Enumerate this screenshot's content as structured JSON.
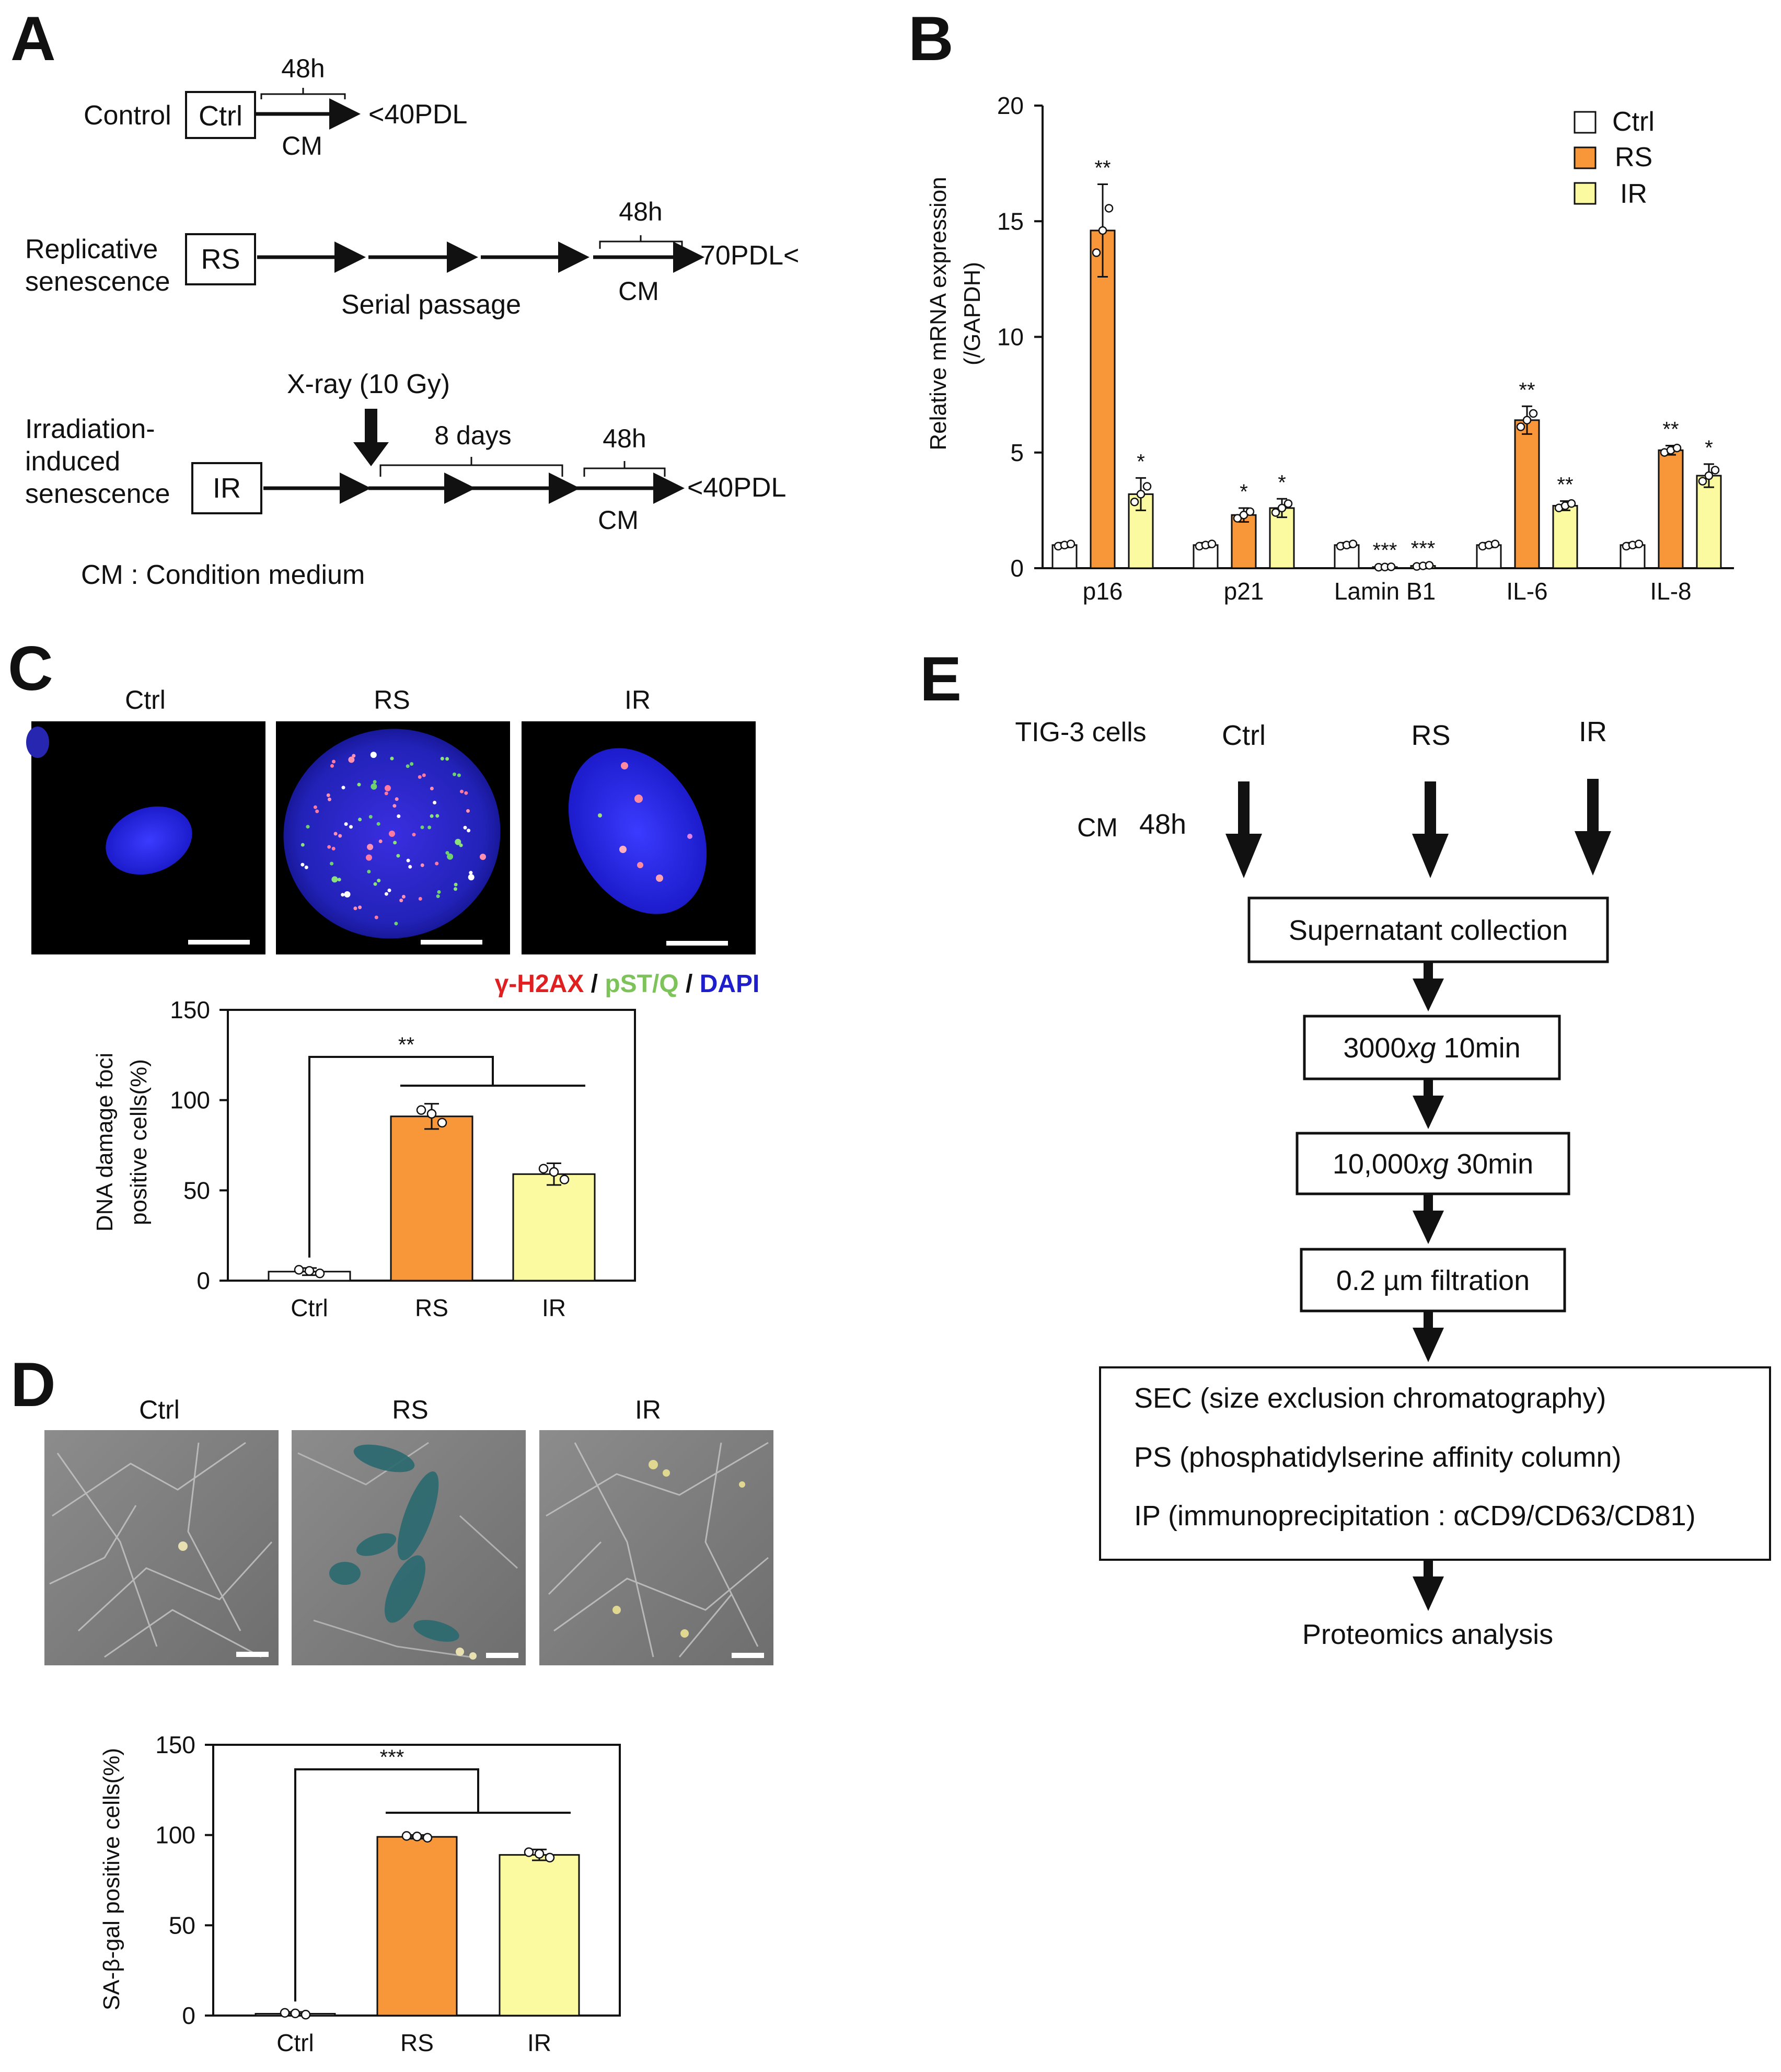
{
  "panels": {
    "a": "A",
    "b": "B",
    "c": "C",
    "d": "D",
    "e": "E"
  },
  "colors": {
    "ctrl": "#ffffff",
    "rs": "#f8963a",
    "ir": "#fbfaa0",
    "red": "#e02020",
    "green": "#7dc35a",
    "blue": "#1e1ecc"
  },
  "panelA": {
    "control_label": "Control",
    "ctrl_box": "Ctrl",
    "ctrl_time": "48h",
    "ctrl_cm": "CM",
    "ctrl_pdl": "<40PDL",
    "rs_label_1": "Replicative",
    "rs_label_2": "senescence",
    "rs_box": "RS",
    "rs_time": "48h",
    "rs_pdl": "70PDL<",
    "rs_passage": "Serial passage",
    "rs_cm": "CM",
    "ir_xray": "X-ray (10 Gy)",
    "ir_label_1": "Irradiation-",
    "ir_label_2": "induced",
    "ir_label_3": "senescence",
    "ir_box": "IR",
    "ir_days": "8 days",
    "ir_time": "48h",
    "ir_pdl": "<40PDL",
    "ir_cm": "CM",
    "footnote": "CM : Condition medium"
  },
  "panelC": {
    "img_titles": [
      "Ctrl",
      "RS",
      "IR"
    ],
    "stain_1": "γ-H2AX",
    "stain_sep": " / ",
    "stain_2": "pST/Q",
    "stain_3": "DAPI"
  },
  "panelD": {
    "img_titles": [
      "Ctrl",
      "RS",
      "IR"
    ]
  },
  "panelE": {
    "cells": "TIG-3 cells",
    "col_ctrl": "Ctrl",
    "col_rs": "RS",
    "col_ir": "IR",
    "cm": "CM",
    "time": "48h",
    "step1": "Supernatant collection",
    "step2a": "3000",
    "step2b": "xg",
    "step2c": " 10min",
    "step3a": "10,000",
    "step3b": "xg",
    "step3c": " 30min",
    "step4": "0.2 µm filtration",
    "box_1": "SEC (size exclusion chromatography)",
    "box_2": "PS (phosphatidylserine affinity column)",
    "box_3": "IP (immunoprecipitation : αCD9/CD63/CD81)",
    "final": "Proteomics analysis"
  },
  "chart_data": [
    {
      "id": "B",
      "type": "bar",
      "categories": [
        "p16",
        "p21",
        "Lamin B1",
        "IL-6",
        "IL-8"
      ],
      "series": [
        {
          "name": "Ctrl",
          "values": [
            1,
            1,
            1,
            1,
            1
          ],
          "stars": [
            "",
            "",
            "",
            "",
            ""
          ]
        },
        {
          "name": "RS",
          "values": [
            14.6,
            2.3,
            0.05,
            6.4,
            5.1
          ],
          "stars": [
            "**",
            "*",
            "***",
            "**",
            "**"
          ]
        },
        {
          "name": "IR",
          "values": [
            3.2,
            2.6,
            0.1,
            2.7,
            4.0
          ],
          "stars": [
            "*",
            "*",
            "***",
            "**",
            "*"
          ]
        }
      ],
      "ylabel_1": "Relative mRNA expression",
      "ylabel_2": "(/GAPDH)",
      "yticks": [
        "0",
        "5",
        "10",
        "15",
        "20"
      ],
      "ylim": [
        0,
        20
      ],
      "legend": "top-right"
    },
    {
      "id": "C",
      "type": "bar",
      "categories": [
        "Ctrl",
        "RS",
        "IR"
      ],
      "values": [
        5,
        91,
        59
      ],
      "ylabel_1": "DNA damage foci",
      "ylabel_2": "positive cells(%)",
      "yticks": [
        "0",
        "50",
        "100",
        "150"
      ],
      "ylim": [
        0,
        150
      ],
      "sig": "**"
    },
    {
      "id": "D",
      "type": "bar",
      "categories": [
        "Ctrl",
        "RS",
        "IR"
      ],
      "values": [
        1,
        99,
        89
      ],
      "ylabel": "SA-β-gal positive cells(%)",
      "yticks": [
        "0",
        "50",
        "100",
        "150"
      ],
      "ylim": [
        0,
        150
      ],
      "sig": "***"
    }
  ]
}
